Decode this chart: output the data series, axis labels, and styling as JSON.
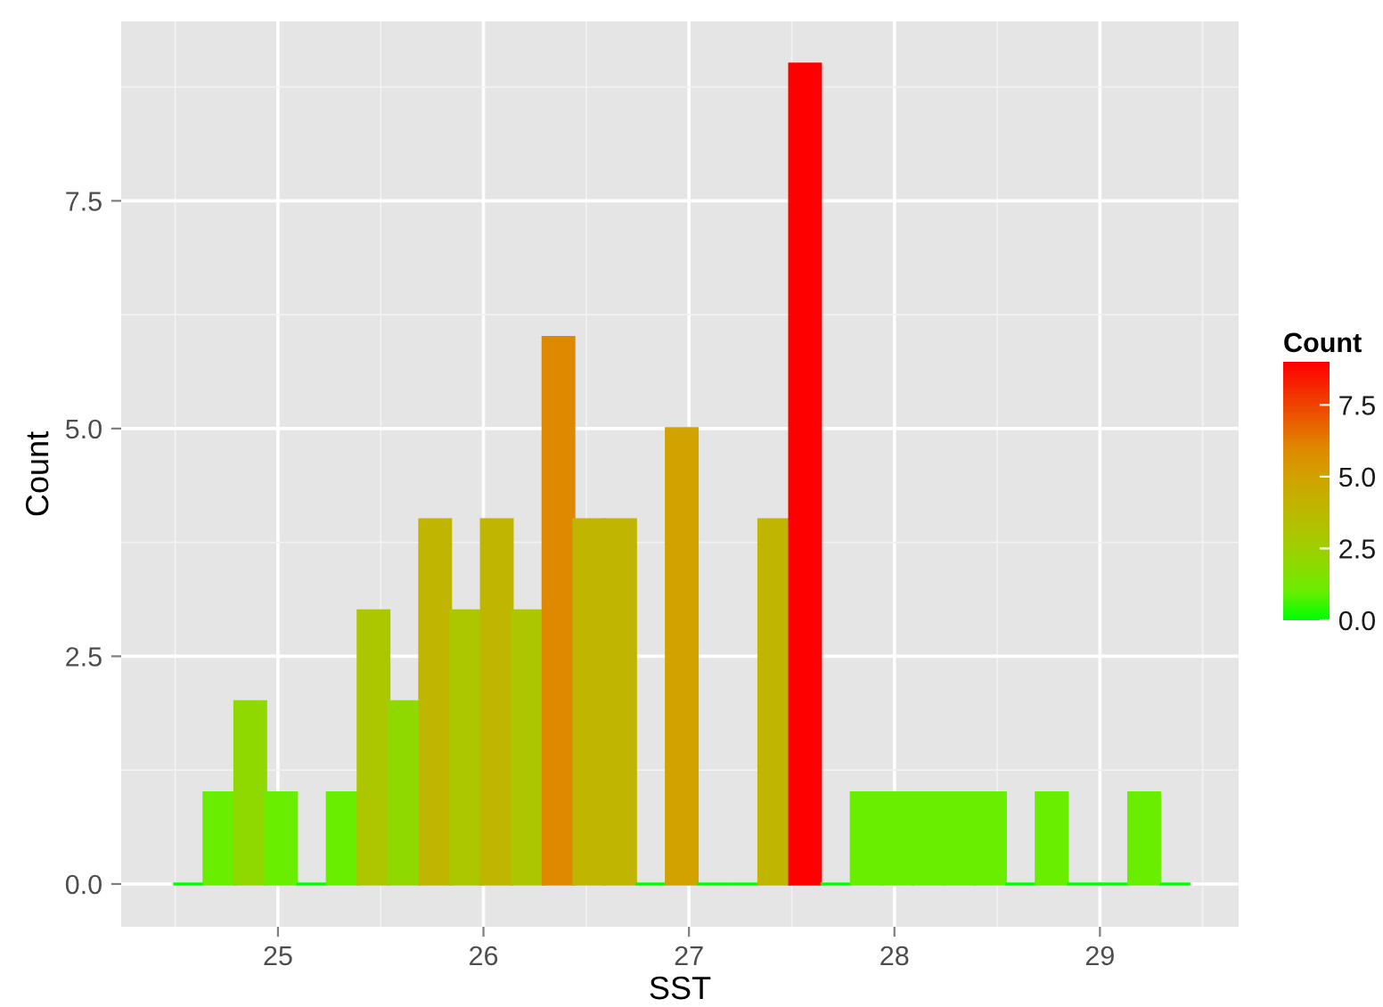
{
  "chart_data": {
    "type": "histogram",
    "xlabel": "SST",
    "ylabel": "Count",
    "clabel": "Count",
    "bins": [
      24.49,
      24.64,
      24.79,
      24.94,
      25.09,
      25.24,
      25.39,
      25.54,
      25.69,
      25.84,
      25.99,
      26.14,
      26.29,
      26.44,
      26.59,
      26.74,
      26.89,
      27.04,
      27.19,
      27.34,
      27.49,
      27.64,
      27.79,
      27.94,
      28.09,
      28.24,
      28.39,
      28.54,
      28.69,
      28.84,
      28.99,
      29.14,
      29.29,
      29.44
    ],
    "values": [
      0,
      1,
      2,
      1,
      0,
      1,
      3,
      2,
      4,
      3,
      4,
      3,
      6,
      4,
      4,
      0,
      5,
      0,
      0,
      4,
      9,
      0,
      1,
      1,
      1,
      1,
      1,
      0,
      1,
      0,
      0,
      1,
      0
    ],
    "colors": [
      "#00ff00",
      "#6aee00",
      "#8fd900",
      "#6aee00",
      "#00ff00",
      "#6aee00",
      "#acc700",
      "#8fd900",
      "#c0b500",
      "#acc700",
      "#c0b500",
      "#acc700",
      "#de8900",
      "#c0b500",
      "#c0b500",
      "#00ff00",
      "#d2a200",
      "#00ff00",
      "#00ff00",
      "#c0b500",
      "#ff0000",
      "#00ff00",
      "#6aee00",
      "#6aee00",
      "#6aee00",
      "#6aee00",
      "#6aee00",
      "#00ff00",
      "#6aee00",
      "#00ff00",
      "#00ff00",
      "#6aee00",
      "#00ff00"
    ],
    "xlim": [
      24.237,
      29.675
    ],
    "xticks": [
      25,
      26,
      27,
      28,
      29
    ],
    "ylim": [
      -0.47,
      9.47
    ],
    "yticks": [
      {
        "value": 0,
        "label": "0.0"
      },
      {
        "value": 2.5,
        "label": "2.5"
      },
      {
        "value": 5,
        "label": "5.0"
      },
      {
        "value": 7.5,
        "label": "7.5"
      }
    ],
    "clim": [
      0,
      9
    ],
    "cticks": [
      {
        "value": 0,
        "label": "0.0"
      },
      {
        "value": 2.5,
        "label": "2.5"
      },
      {
        "value": 5,
        "label": "5.0"
      },
      {
        "value": 7.5,
        "label": "7.5"
      }
    ],
    "grid": true
  }
}
